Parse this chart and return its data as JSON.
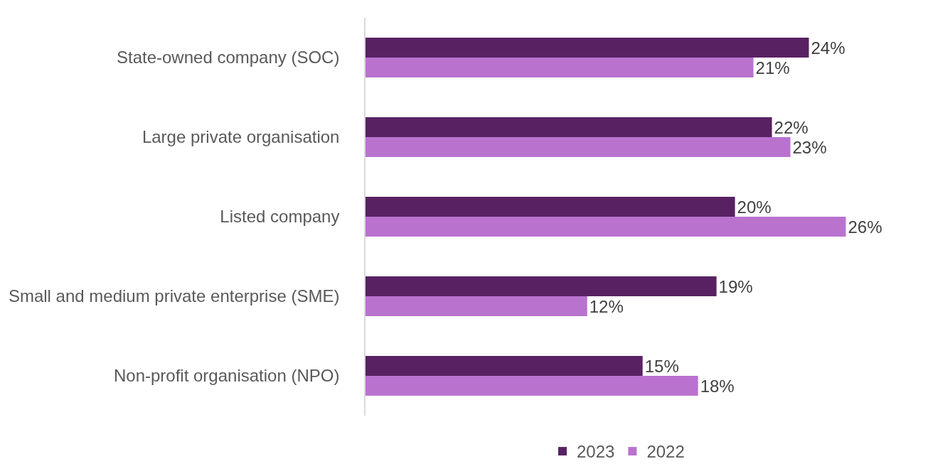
{
  "chart_data": {
    "type": "bar",
    "orientation": "horizontal",
    "categories": [
      "State-owned company (SOC)",
      "Large private organisation",
      "Listed company",
      "Small and medium private enterprise (SME)",
      "Non-profit organisation (NPO)"
    ],
    "series": [
      {
        "name": "2023",
        "color": "#582262",
        "values": [
          24,
          22,
          20,
          19,
          15
        ],
        "value_labels": [
          "24%",
          "22%",
          "20%",
          "19%",
          "15%"
        ]
      },
      {
        "name": "2022",
        "color": "#b973cf",
        "values": [
          21,
          23,
          26,
          12,
          18
        ],
        "value_labels": [
          "21%",
          "23%",
          "26%",
          "12%",
          "18%"
        ]
      }
    ],
    "tick_labels": "y",
    "legend": "bottom"
  }
}
